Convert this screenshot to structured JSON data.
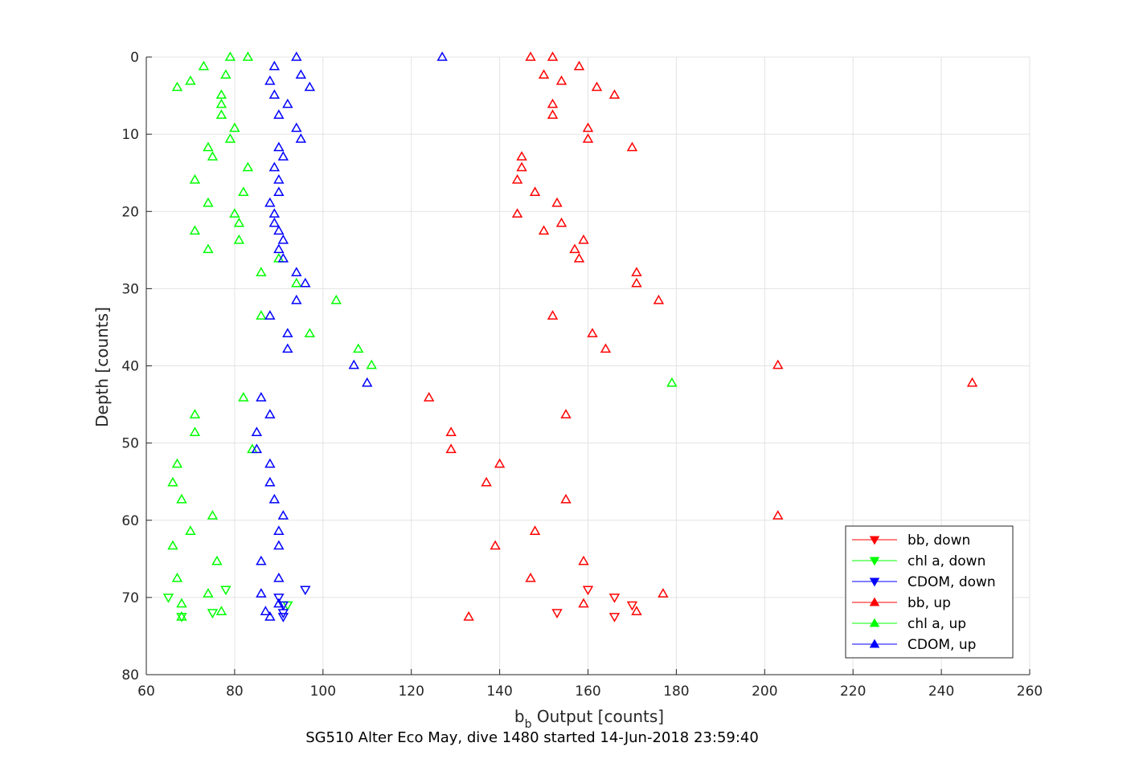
{
  "chart_data": {
    "type": "scatter",
    "title": "SG510 Alter Eco May, dive 1480 started 14-Jun-2018 23:59:40",
    "xlabel_main": "b",
    "xlabel_sub": "b",
    "xlabel_rest": " Output [counts]",
    "ylabel": "Depth [counts]",
    "xlim": [
      60,
      260
    ],
    "ylim": [
      0,
      80
    ],
    "y_reversed": true,
    "grid": true,
    "legend_placement": "bottom-right",
    "xticks": [
      "60",
      "80",
      "100",
      "120",
      "140",
      "160",
      "180",
      "200",
      "220",
      "240",
      "260"
    ],
    "yticks": [
      "0",
      "10",
      "20",
      "30",
      "40",
      "50",
      "60",
      "70",
      "80"
    ],
    "series": [
      {
        "name": "bb, down",
        "color": "#ff0000",
        "marker": "triangle-down",
        "points": [
          [
            160,
            69
          ],
          [
            166,
            70
          ],
          [
            170,
            71
          ],
          [
            153,
            72
          ],
          [
            166,
            72.5
          ]
        ]
      },
      {
        "name": "chl a, down",
        "color": "#00ff00",
        "marker": "triangle-down",
        "points": [
          [
            78,
            69
          ],
          [
            65,
            70
          ],
          [
            92,
            71
          ],
          [
            75,
            72
          ],
          [
            68,
            72.5
          ]
        ]
      },
      {
        "name": "CDOM, down",
        "color": "#0000ff",
        "marker": "triangle-down",
        "points": [
          [
            96,
            69
          ],
          [
            90,
            70
          ],
          [
            91,
            71
          ],
          [
            91,
            72
          ],
          [
            91,
            72.5
          ]
        ]
      },
      {
        "name": "bb, up",
        "color": "#ff0000",
        "marker": "triangle-up",
        "points": [
          [
            147,
            0
          ],
          [
            152,
            0
          ],
          [
            158,
            1.2
          ],
          [
            150,
            2.3
          ],
          [
            154,
            3.1
          ],
          [
            162,
            3.9
          ],
          [
            166,
            4.9
          ],
          [
            152,
            6.1
          ],
          [
            152,
            7.5
          ],
          [
            160,
            9.2
          ],
          [
            160,
            10.6
          ],
          [
            170,
            11.7
          ],
          [
            145,
            12.9
          ],
          [
            145,
            14.3
          ],
          [
            144,
            15.9
          ],
          [
            148,
            17.5
          ],
          [
            153,
            18.9
          ],
          [
            144,
            20.3
          ],
          [
            154,
            21.5
          ],
          [
            150,
            22.5
          ],
          [
            159,
            23.7
          ],
          [
            157,
            24.9
          ],
          [
            158,
            26.1
          ],
          [
            171,
            27.9
          ],
          [
            171,
            29.3
          ],
          [
            176,
            31.5
          ],
          [
            152,
            33.5
          ],
          [
            161,
            35.8
          ],
          [
            164,
            37.8
          ],
          [
            203,
            39.9
          ],
          [
            247,
            42.2
          ],
          [
            124,
            44.1
          ],
          [
            155,
            46.3
          ],
          [
            129,
            48.6
          ],
          [
            129,
            50.8
          ],
          [
            140,
            52.7
          ],
          [
            137,
            55.1
          ],
          [
            155,
            57.3
          ],
          [
            203,
            59.4
          ],
          [
            148,
            61.4
          ],
          [
            139,
            63.3
          ],
          [
            159,
            65.3
          ],
          [
            147,
            67.5
          ],
          [
            177,
            69.5
          ],
          [
            159,
            70.8
          ],
          [
            171,
            71.8
          ],
          [
            133,
            72.5
          ]
        ]
      },
      {
        "name": "chl a, up",
        "color": "#00ff00",
        "marker": "triangle-up",
        "points": [
          [
            79,
            0
          ],
          [
            83,
            0
          ],
          [
            73,
            1.2
          ],
          [
            78,
            2.3
          ],
          [
            70,
            3.1
          ],
          [
            67,
            3.9
          ],
          [
            77,
            4.9
          ],
          [
            77,
            6.1
          ],
          [
            77,
            7.5
          ],
          [
            80,
            9.2
          ],
          [
            79,
            10.6
          ],
          [
            74,
            11.7
          ],
          [
            75,
            12.9
          ],
          [
            83,
            14.3
          ],
          [
            71,
            15.9
          ],
          [
            82,
            17.5
          ],
          [
            74,
            18.9
          ],
          [
            80,
            20.3
          ],
          [
            81,
            21.5
          ],
          [
            71,
            22.5
          ],
          [
            81,
            23.7
          ],
          [
            74,
            24.9
          ],
          [
            90,
            26.1
          ],
          [
            86,
            27.9
          ],
          [
            94,
            29.3
          ],
          [
            103,
            31.5
          ],
          [
            86,
            33.5
          ],
          [
            97,
            35.8
          ],
          [
            108,
            37.8
          ],
          [
            111,
            39.9
          ],
          [
            179,
            42.2
          ],
          [
            82,
            44.1
          ],
          [
            71,
            46.3
          ],
          [
            71,
            48.6
          ],
          [
            84,
            50.8
          ],
          [
            67,
            52.7
          ],
          [
            66,
            55.1
          ],
          [
            68,
            57.3
          ],
          [
            75,
            59.4
          ],
          [
            70,
            61.4
          ],
          [
            66,
            63.3
          ],
          [
            76,
            65.3
          ],
          [
            67,
            67.5
          ],
          [
            74,
            69.5
          ],
          [
            68,
            70.8
          ],
          [
            77,
            71.8
          ],
          [
            68,
            72.5
          ]
        ]
      },
      {
        "name": "CDOM, up",
        "color": "#0000ff",
        "marker": "triangle-up",
        "points": [
          [
            94,
            0
          ],
          [
            127,
            0
          ],
          [
            89,
            1.2
          ],
          [
            95,
            2.3
          ],
          [
            88,
            3.1
          ],
          [
            97,
            3.9
          ],
          [
            89,
            4.9
          ],
          [
            92,
            6.1
          ],
          [
            90,
            7.5
          ],
          [
            94,
            9.2
          ],
          [
            95,
            10.6
          ],
          [
            90,
            11.7
          ],
          [
            91,
            12.9
          ],
          [
            89,
            14.3
          ],
          [
            90,
            15.9
          ],
          [
            90,
            17.5
          ],
          [
            88,
            18.9
          ],
          [
            89,
            20.3
          ],
          [
            89,
            21.5
          ],
          [
            90,
            22.5
          ],
          [
            91,
            23.7
          ],
          [
            90,
            24.9
          ],
          [
            91,
            26.1
          ],
          [
            94,
            27.9
          ],
          [
            96,
            29.3
          ],
          [
            94,
            31.5
          ],
          [
            88,
            33.5
          ],
          [
            92,
            35.8
          ],
          [
            92,
            37.8
          ],
          [
            107,
            39.9
          ],
          [
            110,
            42.2
          ],
          [
            86,
            44.1
          ],
          [
            88,
            46.3
          ],
          [
            85,
            48.6
          ],
          [
            85,
            50.8
          ],
          [
            88,
            52.7
          ],
          [
            88,
            55.1
          ],
          [
            89,
            57.3
          ],
          [
            91,
            59.4
          ],
          [
            90,
            61.4
          ],
          [
            90,
            63.3
          ],
          [
            86,
            65.3
          ],
          [
            90,
            67.5
          ],
          [
            86,
            69.5
          ],
          [
            90,
            70.8
          ],
          [
            87,
            71.8
          ],
          [
            88,
            72.5
          ]
        ]
      }
    ]
  }
}
